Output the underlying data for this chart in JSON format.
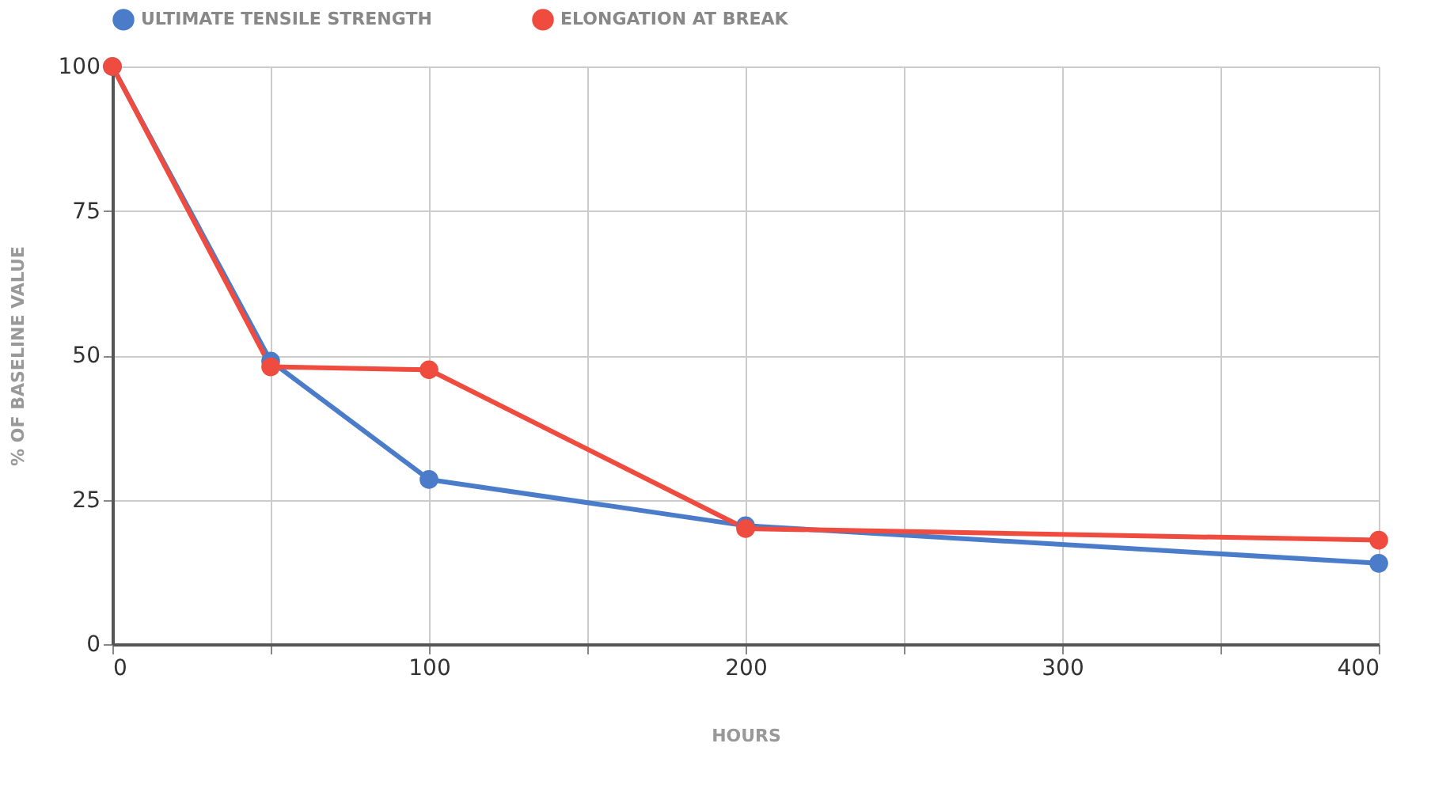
{
  "chart_data": {
    "type": "line",
    "xlabel": "HOURS",
    "ylabel": "% OF BASELINE VALUE",
    "x": [
      0,
      50,
      100,
      200,
      400
    ],
    "series": [
      {
        "name": "ULTIMATE TENSILE STRENGTH",
        "color": "#4a7cc9",
        "values": [
          100,
          49,
          28.5,
          20.5,
          14
        ]
      },
      {
        "name": "ELONGATION AT BREAK",
        "color": "#ef4b3f",
        "values": [
          100,
          48,
          47.5,
          20,
          18
        ]
      }
    ],
    "xlim": [
      0,
      400
    ],
    "ylim": [
      0,
      100
    ],
    "xticks": [
      0,
      {
        "value": 50,
        "label": null
      },
      100,
      {
        "value": 150,
        "label": null
      },
      200,
      {
        "value": 250,
        "label": null
      },
      300,
      {
        "value": 350,
        "label": null
      },
      400
    ],
    "yticks": [
      0,
      25,
      50,
      75,
      100
    ],
    "grid": true,
    "legend": "top",
    "marker": "circle",
    "line_style": "solid"
  }
}
